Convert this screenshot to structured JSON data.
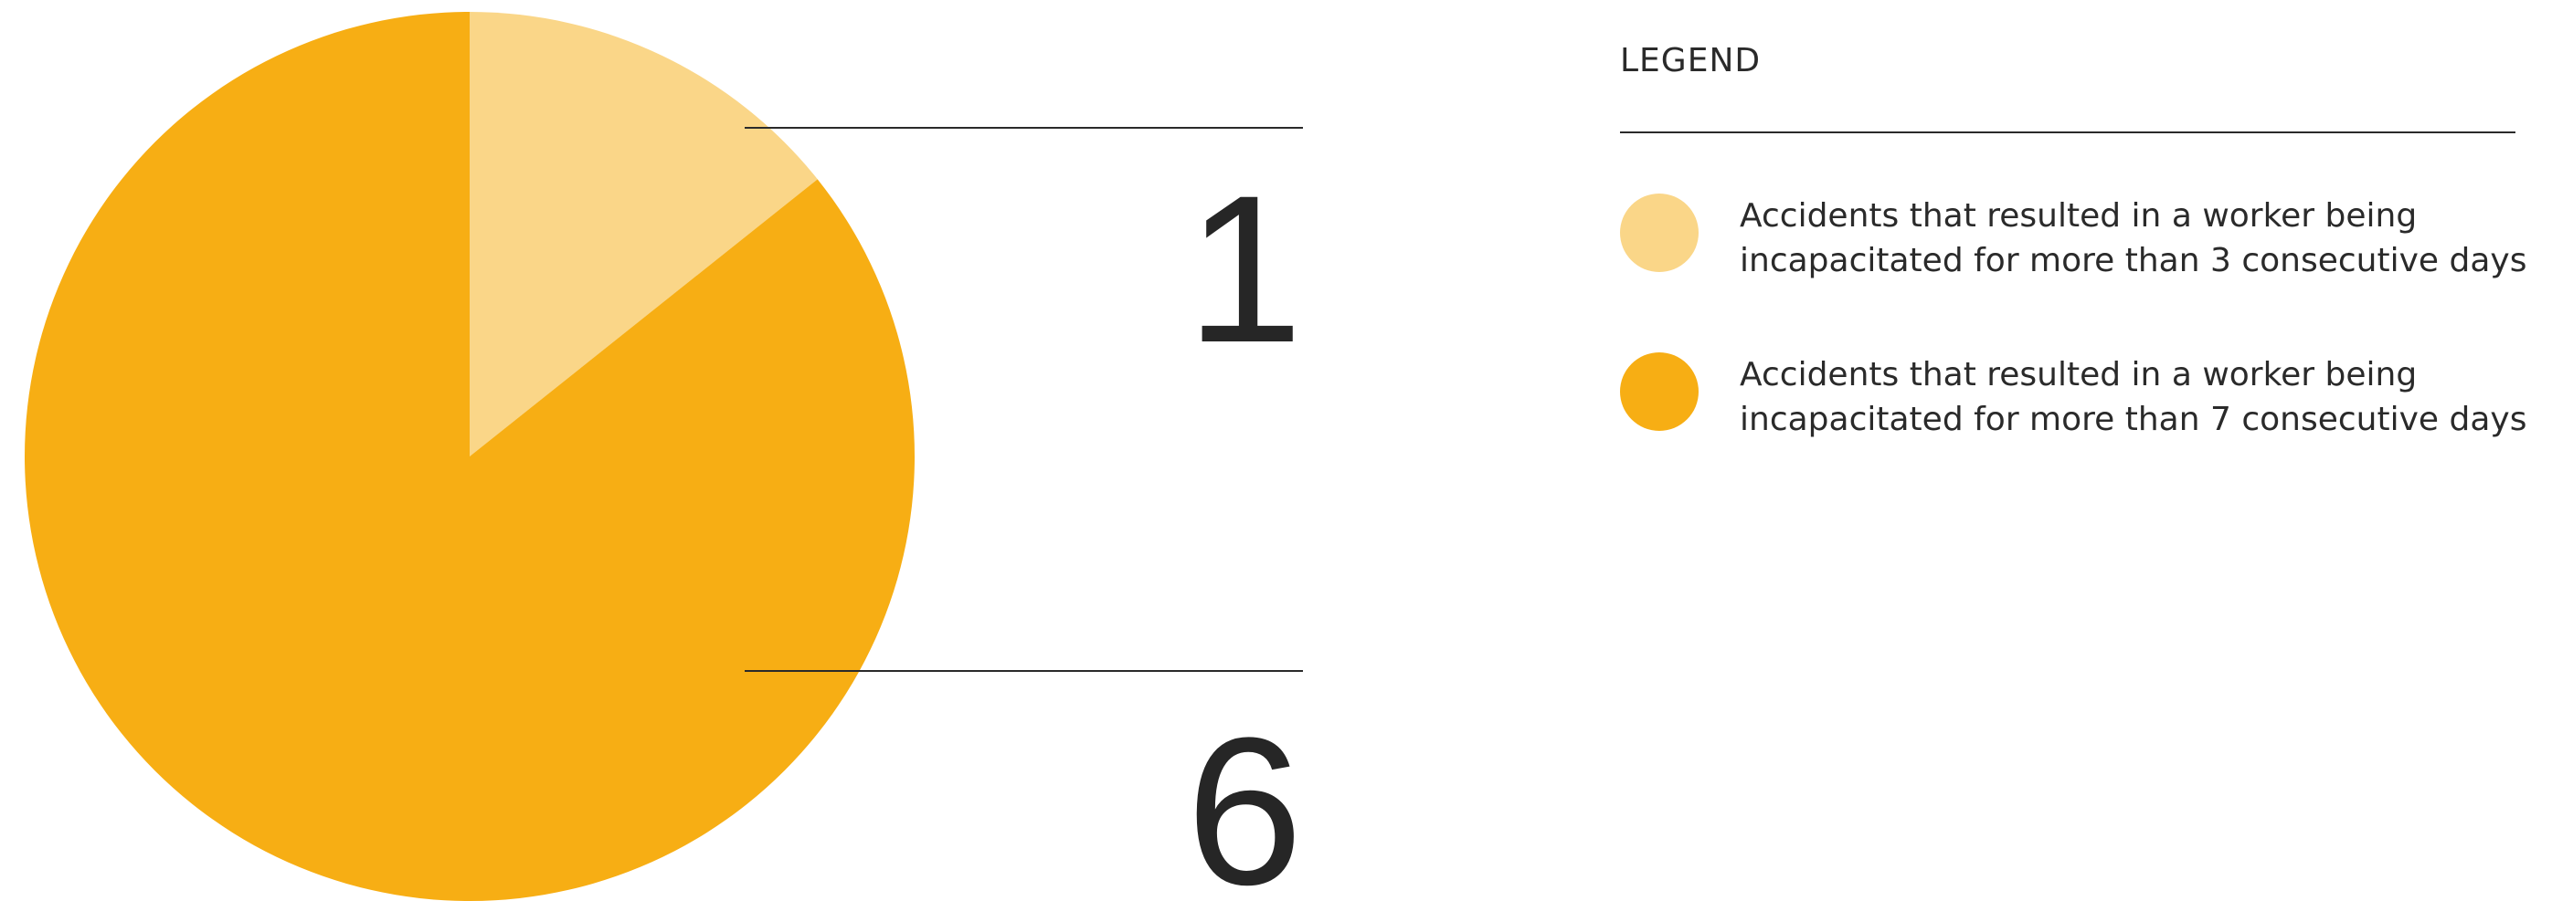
{
  "chart_data": {
    "type": "pie",
    "legend_title": "LEGEND",
    "categories": [
      "Accidents that resulted in a worker being incapacitated for more than 3 consecutive days",
      "Accidents that resulted in a worker being incapacitated for more than 7 consecutive days"
    ],
    "values": [
      1,
      6
    ],
    "colors": [
      "#fad688",
      "#f7ae14"
    ],
    "legend": "right"
  }
}
